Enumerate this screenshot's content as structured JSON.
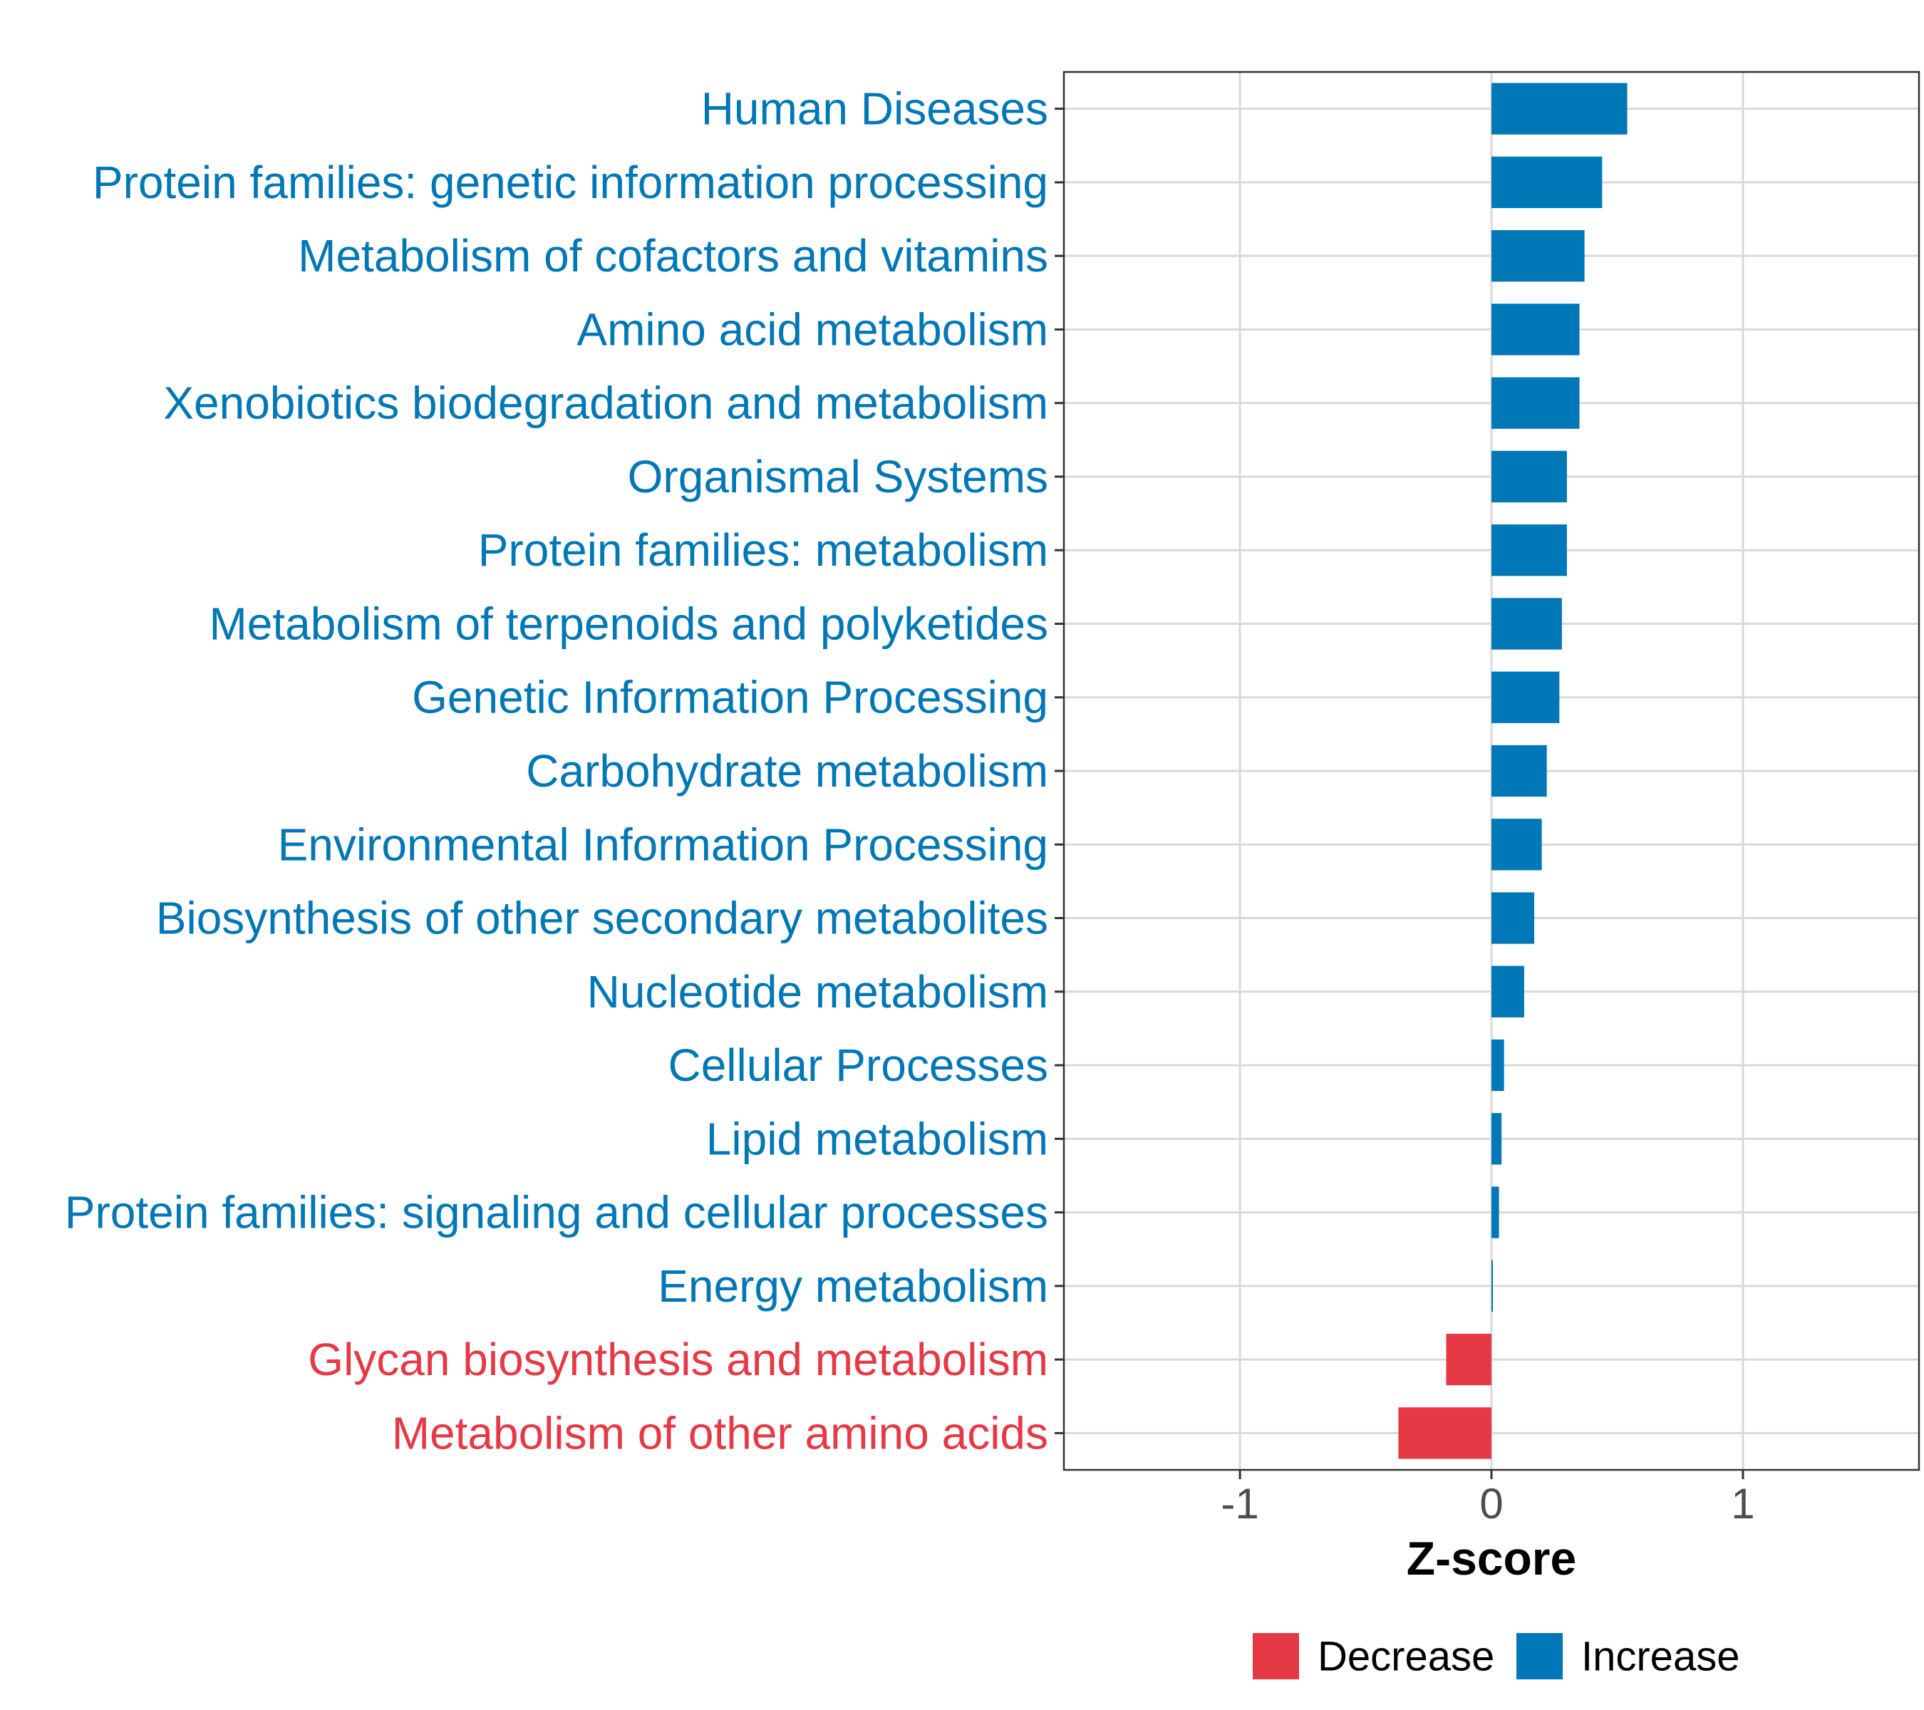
{
  "chart_data": {
    "type": "bar",
    "orientation": "horizontal",
    "title": "",
    "xlabel": "Z-score",
    "ylabel": "",
    "xlim": [
      -1.7,
      1.7
    ],
    "x_ticks": [
      -1,
      0,
      1
    ],
    "x_tick_labels": [
      "-1",
      "0",
      "1"
    ],
    "grid": true,
    "categories": [
      "Human Diseases",
      "Protein families: genetic information processing",
      "Metabolism of cofactors and vitamins",
      "Amino acid metabolism",
      "Xenobiotics biodegradation and metabolism",
      "Organismal Systems",
      "Protein families: metabolism",
      "Metabolism of terpenoids and polyketides",
      "Genetic Information Processing",
      "Carbohydrate metabolism",
      "Environmental Information Processing",
      "Biosynthesis of other secondary metabolites",
      "Nucleotide metabolism",
      "Cellular Processes",
      "Lipid metabolism",
      "Protein families: signaling and cellular processes",
      "Energy metabolism",
      "Glycan biosynthesis and metabolism",
      "Metabolism of other amino acids"
    ],
    "values": [
      0.54,
      0.44,
      0.37,
      0.35,
      0.35,
      0.3,
      0.3,
      0.28,
      0.27,
      0.22,
      0.2,
      0.17,
      0.13,
      0.05,
      0.04,
      0.03,
      0.005,
      -0.18,
      -0.37
    ],
    "groups": [
      "Increase",
      "Increase",
      "Increase",
      "Increase",
      "Increase",
      "Increase",
      "Increase",
      "Increase",
      "Increase",
      "Increase",
      "Increase",
      "Increase",
      "Increase",
      "Increase",
      "Increase",
      "Increase",
      "Increase",
      "Decrease",
      "Decrease"
    ],
    "legend": {
      "position": "bottom",
      "entries": [
        {
          "name": "Decrease",
          "color": "#E63946"
        },
        {
          "name": "Increase",
          "color": "#0077B6"
        }
      ]
    },
    "colors": {
      "Increase": "#0077B6",
      "Decrease": "#E63946"
    }
  }
}
